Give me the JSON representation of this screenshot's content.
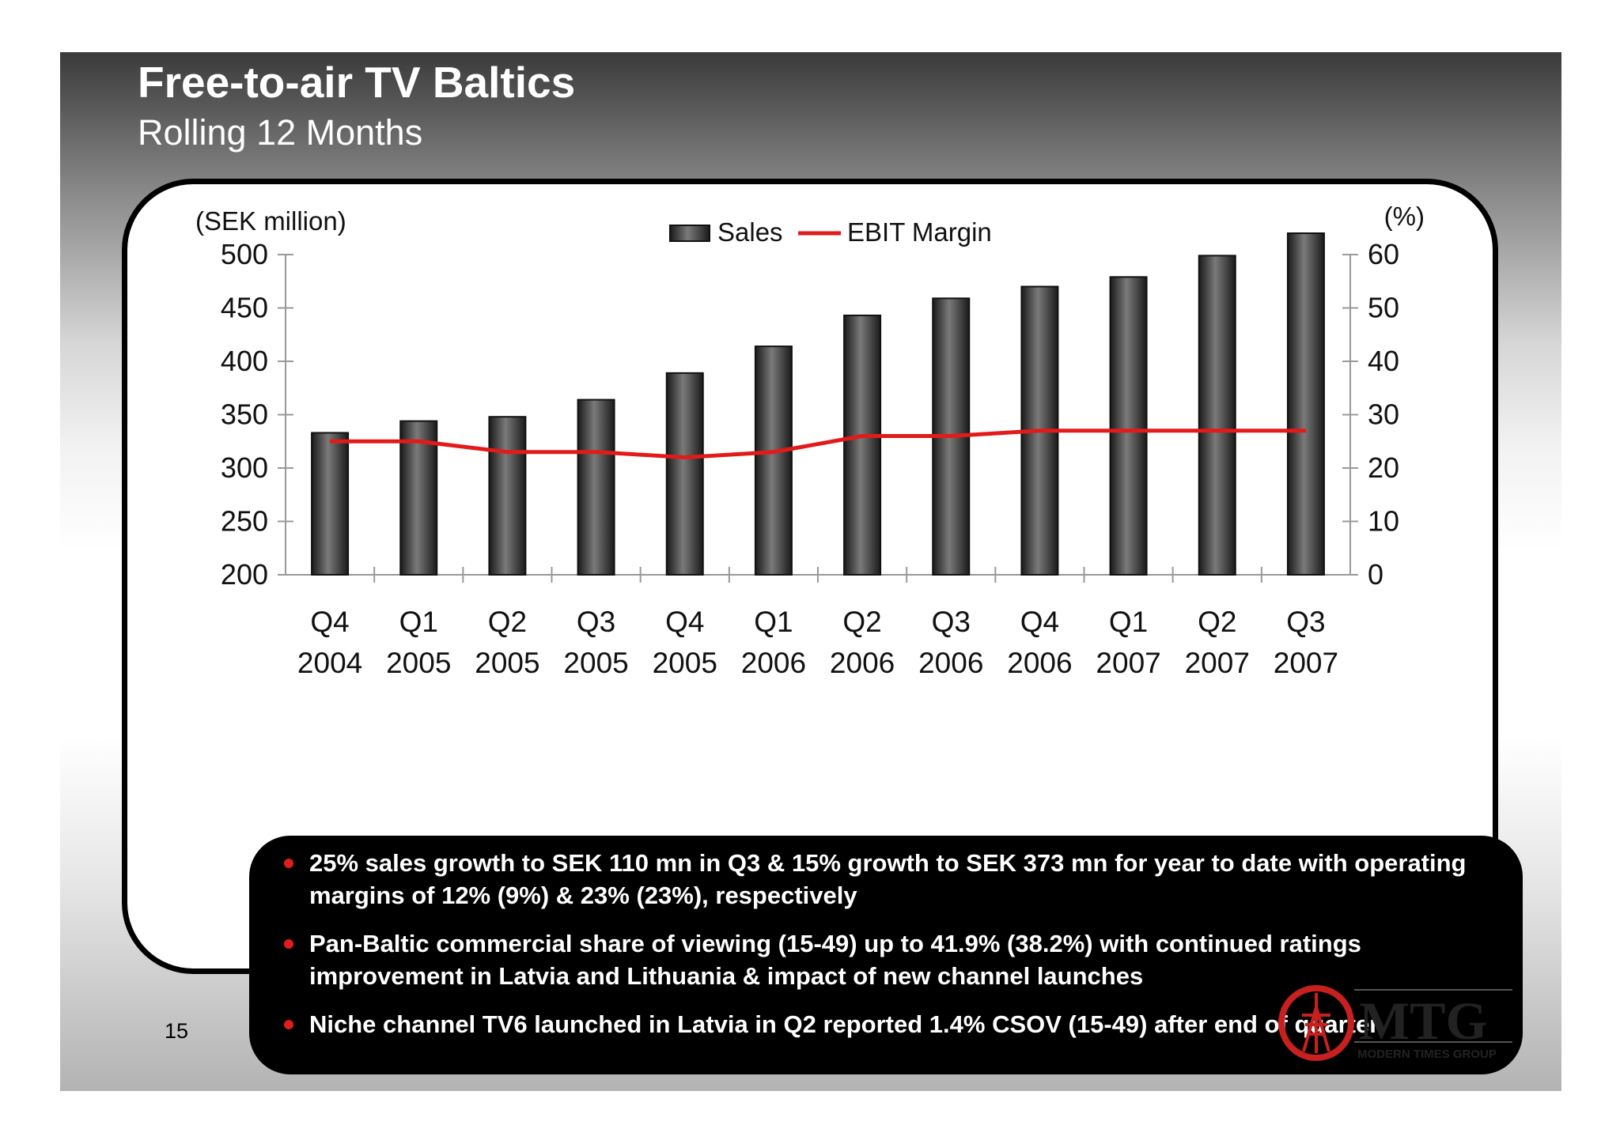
{
  "header": {
    "title": "Free-to-air TV Baltics",
    "subtitle": "Rolling 12 Months"
  },
  "chart_data": {
    "type": "bar",
    "categories": [
      [
        "Q4",
        "2004"
      ],
      [
        "Q1",
        "2005"
      ],
      [
        "Q2",
        "2005"
      ],
      [
        "Q3",
        "2005"
      ],
      [
        "Q4",
        "2005"
      ],
      [
        "Q1",
        "2006"
      ],
      [
        "Q2",
        "2006"
      ],
      [
        "Q3",
        "2006"
      ],
      [
        "Q4",
        "2006"
      ],
      [
        "Q1",
        "2007"
      ],
      [
        "Q2",
        "2007"
      ],
      [
        "Q3",
        "2007"
      ]
    ],
    "series": [
      {
        "name": "Sales",
        "type": "bar",
        "axis": "left",
        "color": "#3c3c3c",
        "values": [
          333,
          344,
          348,
          364,
          389,
          414,
          443,
          459,
          470,
          479,
          499,
          520
        ]
      },
      {
        "name": "EBIT Margin",
        "type": "line",
        "axis": "right",
        "color": "#e31a1a",
        "values": [
          25,
          25,
          23,
          23,
          22,
          23,
          26,
          26,
          27,
          27,
          27,
          27
        ]
      }
    ],
    "y_left": {
      "label": "(SEK million)",
      "ylim": [
        200,
        500
      ],
      "ticks": [
        "500",
        "450",
        "400",
        "350",
        "300",
        "250",
        "200"
      ]
    },
    "y_right": {
      "label": "(%)",
      "ylim": [
        0,
        60
      ],
      "ticks": [
        "60",
        "50",
        "40",
        "30",
        "20",
        "10",
        "0"
      ]
    },
    "legend": {
      "position": "top-center",
      "items": [
        "Sales",
        "EBIT Margin"
      ]
    },
    "grid": false
  },
  "bullets": [
    "25% sales growth to SEK 110 mn in Q3 & 15% growth to SEK 373 mn for year to date with operating margins of 12% (9%) & 23% (23%), respectively",
    "Pan-Baltic commercial share of viewing (15-49) up to 41.9% (38.2%) with continued ratings improvement in Latvia and Lithuania & impact of new channel launches",
    "Niche channel TV6 launched in Latvia in Q2 reported 1.4% CSOV (15-49) after end of quarter"
  ],
  "footer": {
    "page_number": "15",
    "logo_name": "MTG",
    "logo_tagline": "MODERN TIMES GROUP",
    "logo_color": "#c8201f"
  }
}
